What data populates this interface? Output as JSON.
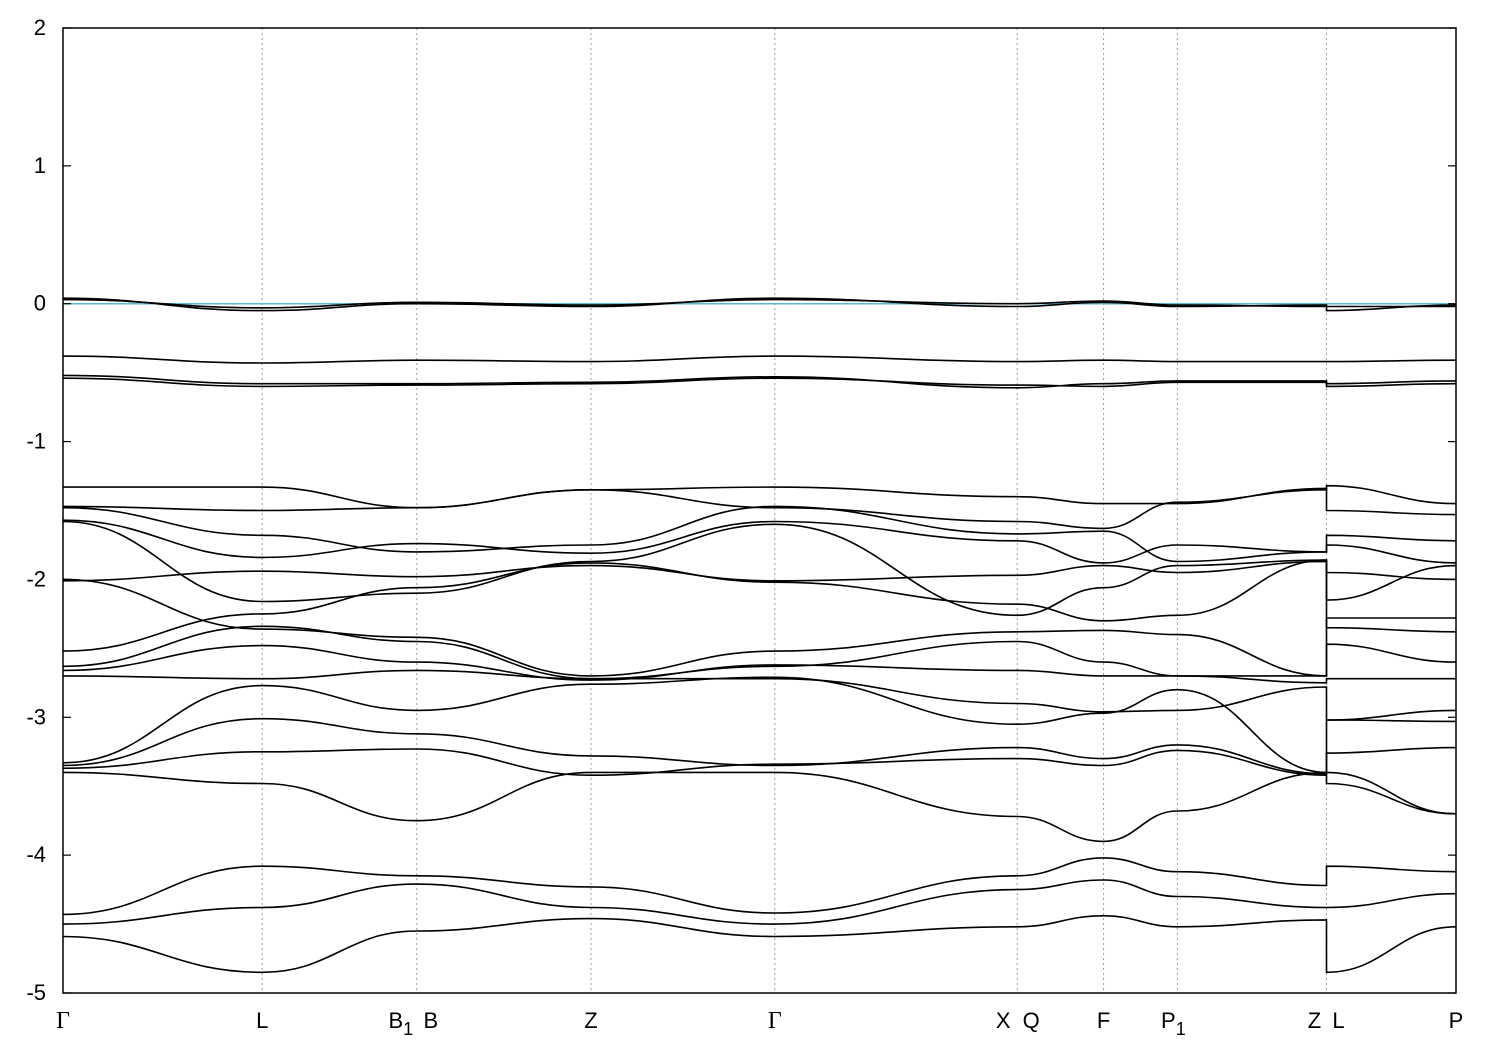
{
  "chart_data": {
    "type": "line",
    "title": "",
    "xlabel": "",
    "ylabel": "",
    "ylim": [
      -5,
      2
    ],
    "xlim": [
      0,
      1
    ],
    "grid": "dotted vertical lines at high-symmetry points",
    "yticks": [
      "2",
      "1",
      "0",
      "-1",
      "-2",
      "-3",
      "-4",
      "-5"
    ],
    "kpoints": [
      {
        "label": "Γ",
        "sub": "",
        "x": 0.0,
        "greek": true
      },
      {
        "label": "L",
        "sub": "",
        "x": 0.143
      },
      {
        "label": "B",
        "sub": "1",
        "x": 0.254,
        "dx": -12
      },
      {
        "label": "B",
        "sub": "",
        "x": 0.254,
        "dx": 14
      },
      {
        "label": "Z",
        "sub": "",
        "x": 0.379
      },
      {
        "label": "Γ",
        "sub": "",
        "x": 0.511,
        "greek": true
      },
      {
        "label": "X",
        "sub": "",
        "x": 0.685,
        "dx": -14
      },
      {
        "label": "Q",
        "sub": "",
        "x": 0.685,
        "dx": 14
      },
      {
        "label": "F",
        "sub": "",
        "x": 0.747
      },
      {
        "label": "P",
        "sub": "1",
        "x": 0.8
      },
      {
        "label": "Z",
        "sub": "",
        "x": 0.907,
        "dx": -12
      },
      {
        "label": "L",
        "sub": "",
        "x": 0.907,
        "dx": 12
      },
      {
        "label": "P",
        "sub": "",
        "x": 1.0
      }
    ],
    "fermi_level": {
      "y": 0,
      "color": "#5fb8c8"
    },
    "band_color": "#000000",
    "series": [
      {
        "x": [
          0,
          0.143,
          0.254,
          0.379,
          0.511,
          0.685,
          0.747,
          0.8,
          0.907,
          0.907,
          1.0
        ],
        "y": [
          0.04,
          -0.05,
          0.0,
          -0.02,
          0.04,
          -0.02,
          0.01,
          -0.02,
          -0.01,
          -0.05,
          -0.01
        ]
      },
      {
        "x": [
          0,
          0.143,
          0.254,
          0.379,
          0.511,
          0.685,
          0.747,
          0.8,
          0.907,
          0.907,
          1.0
        ],
        "y": [
          0.03,
          -0.03,
          0.01,
          -0.01,
          0.03,
          0.0,
          0.02,
          -0.01,
          -0.02,
          -0.02,
          -0.02
        ]
      },
      {
        "x": [
          0,
          0.143,
          0.254,
          0.379,
          0.511,
          0.685,
          0.747,
          0.8,
          0.907,
          0.907,
          1.0
        ],
        "y": [
          -0.38,
          -0.43,
          -0.41,
          -0.42,
          -0.38,
          -0.42,
          -0.41,
          -0.42,
          -0.42,
          -0.42,
          -0.41
        ]
      },
      {
        "x": [
          0,
          0.143,
          0.254,
          0.379,
          0.511,
          0.685,
          0.747,
          0.8,
          0.907,
          0.907,
          1.0
        ],
        "y": [
          -0.52,
          -0.58,
          -0.58,
          -0.57,
          -0.53,
          -0.61,
          -0.58,
          -0.56,
          -0.56,
          -0.6,
          -0.58
        ]
      },
      {
        "x": [
          0,
          0.143,
          0.254,
          0.379,
          0.511,
          0.685,
          0.747,
          0.8,
          0.907,
          0.907,
          1.0
        ],
        "y": [
          -0.54,
          -0.6,
          -0.59,
          -0.58,
          -0.54,
          -0.59,
          -0.6,
          -0.57,
          -0.57,
          -0.58,
          -0.56
        ]
      },
      {
        "x": [
          0,
          0.143,
          0.254,
          0.379,
          0.511,
          0.685,
          0.747,
          0.8,
          0.907,
          0.907,
          1.0
        ],
        "y": [
          -1.33,
          -1.33,
          -1.48,
          -1.35,
          -1.48,
          -1.58,
          -1.63,
          -1.44,
          -1.35,
          -1.32,
          -1.45
        ]
      },
      {
        "x": [
          0,
          0.143,
          0.254,
          0.379,
          0.511,
          0.685,
          0.747,
          0.8,
          0.907,
          0.907,
          1.0
        ],
        "y": [
          -1.47,
          -1.5,
          -1.48,
          -1.35,
          -1.33,
          -1.4,
          -1.45,
          -1.45,
          -1.34,
          -1.5,
          -1.53
        ]
      },
      {
        "x": [
          0,
          0.143,
          0.254,
          0.379,
          0.511,
          0.685,
          0.747,
          0.8,
          0.907,
          0.907,
          1.0
        ],
        "y": [
          -1.48,
          -1.68,
          -1.8,
          -1.75,
          -1.47,
          -1.67,
          -1.65,
          -1.87,
          -1.8,
          -1.68,
          -1.72
        ]
      },
      {
        "x": [
          0,
          0.143,
          0.254,
          0.379,
          0.511,
          0.685,
          0.747,
          0.8,
          0.907,
          0.907,
          1.0
        ],
        "y": [
          -1.57,
          -1.84,
          -1.74,
          -1.81,
          -1.58,
          -1.72,
          -1.88,
          -1.75,
          -1.8,
          -1.75,
          -1.88
        ]
      },
      {
        "x": [
          0,
          0.143,
          0.254,
          0.379,
          0.511,
          0.685,
          0.747,
          0.8,
          0.907,
          0.907,
          1.0
        ],
        "y": [
          -1.58,
          -2.16,
          -2.1,
          -1.87,
          -1.6,
          -2.26,
          -2.06,
          -1.9,
          -1.86,
          -2.15,
          -1.9
        ]
      },
      {
        "x": [
          0,
          0.143,
          0.254,
          0.379,
          0.511,
          0.685,
          0.747,
          0.8,
          0.907,
          0.907,
          1.0
        ],
        "y": [
          -2.01,
          -1.94,
          -1.98,
          -1.9,
          -2.01,
          -1.97,
          -1.9,
          -1.95,
          -1.87,
          -1.95,
          -2.0
        ]
      },
      {
        "x": [
          0,
          0.143,
          0.254,
          0.379,
          0.511,
          0.685,
          0.747,
          0.8,
          0.907,
          0.907,
          1.0
        ],
        "y": [
          -2.0,
          -2.36,
          -2.42,
          -2.7,
          -2.52,
          -2.38,
          -2.37,
          -2.4,
          -2.7,
          -2.28,
          -2.28
        ]
      },
      {
        "x": [
          0,
          0.143,
          0.254,
          0.379,
          0.511,
          0.685,
          0.747,
          0.8,
          0.907,
          0.907,
          1.0
        ],
        "y": [
          -2.52,
          -2.25,
          -2.06,
          -1.88,
          -2.02,
          -2.18,
          -2.3,
          -2.26,
          -1.86,
          -2.35,
          -2.38
        ]
      },
      {
        "x": [
          0,
          0.143,
          0.254,
          0.379,
          0.511,
          0.685,
          0.747,
          0.8,
          0.907,
          0.907,
          1.0
        ],
        "y": [
          -2.63,
          -2.34,
          -2.45,
          -2.72,
          -2.63,
          -2.45,
          -2.6,
          -2.7,
          -2.7,
          -2.47,
          -2.6
        ]
      },
      {
        "x": [
          0,
          0.143,
          0.254,
          0.379,
          0.511,
          0.685,
          0.747,
          0.8,
          0.907,
          0.907,
          1.0
        ],
        "y": [
          -2.66,
          -2.48,
          -2.6,
          -2.73,
          -2.62,
          -2.66,
          -2.7,
          -2.7,
          -2.75,
          -2.72,
          -2.72
        ]
      },
      {
        "x": [
          0,
          0.143,
          0.254,
          0.379,
          0.511,
          0.685,
          0.747,
          0.8,
          0.907,
          0.907,
          1.0
        ],
        "y": [
          -2.7,
          -2.72,
          -2.66,
          -2.72,
          -2.72,
          -2.9,
          -2.96,
          -2.95,
          -2.78,
          -3.02,
          -2.95
        ]
      },
      {
        "x": [
          0,
          0.143,
          0.254,
          0.379,
          0.511,
          0.685,
          0.747,
          0.8,
          0.907,
          0.907,
          1.0
        ],
        "y": [
          -3.33,
          -2.77,
          -2.95,
          -2.76,
          -2.71,
          -3.05,
          -2.97,
          -2.8,
          -3.4,
          -3.02,
          -3.03
        ]
      },
      {
        "x": [
          0,
          0.143,
          0.254,
          0.379,
          0.511,
          0.685,
          0.747,
          0.8,
          0.907,
          0.907,
          1.0
        ],
        "y": [
          -3.35,
          -3.01,
          -3.12,
          -3.28,
          -3.35,
          -3.22,
          -3.3,
          -3.2,
          -3.41,
          -3.26,
          -3.22
        ]
      },
      {
        "x": [
          0,
          0.143,
          0.254,
          0.379,
          0.511,
          0.685,
          0.747,
          0.8,
          0.907,
          0.907,
          1.0
        ],
        "y": [
          -3.37,
          -3.25,
          -3.23,
          -3.42,
          -3.34,
          -3.3,
          -3.35,
          -3.24,
          -3.42,
          -3.48,
          -3.7
        ]
      },
      {
        "x": [
          0,
          0.143,
          0.254,
          0.379,
          0.511,
          0.685,
          0.747,
          0.8,
          0.907,
          0.907,
          1.0
        ],
        "y": [
          -3.4,
          -3.48,
          -3.75,
          -3.4,
          -3.4,
          -3.72,
          -3.9,
          -3.68,
          -3.4,
          -3.4,
          -3.7
        ]
      },
      {
        "x": [
          0,
          0.143,
          0.254,
          0.379,
          0.511,
          0.685,
          0.747,
          0.8,
          0.907,
          0.907,
          1.0
        ],
        "y": [
          -4.43,
          -4.08,
          -4.15,
          -4.23,
          -4.42,
          -4.15,
          -4.02,
          -4.12,
          -4.22,
          -4.08,
          -4.12
        ]
      },
      {
        "x": [
          0,
          0.143,
          0.254,
          0.379,
          0.511,
          0.685,
          0.747,
          0.8,
          0.907,
          0.907,
          1.0
        ],
        "y": [
          -4.5,
          -4.38,
          -4.21,
          -4.38,
          -4.5,
          -4.25,
          -4.18,
          -4.3,
          -4.38,
          -4.38,
          -4.28
        ]
      },
      {
        "x": [
          0,
          0.143,
          0.254,
          0.379,
          0.511,
          0.685,
          0.747,
          0.8,
          0.907,
          0.907,
          1.0
        ],
        "y": [
          -4.59,
          -4.85,
          -4.55,
          -4.46,
          -4.59,
          -4.52,
          -4.44,
          -4.52,
          -4.47,
          -4.85,
          -4.52
        ]
      }
    ]
  }
}
